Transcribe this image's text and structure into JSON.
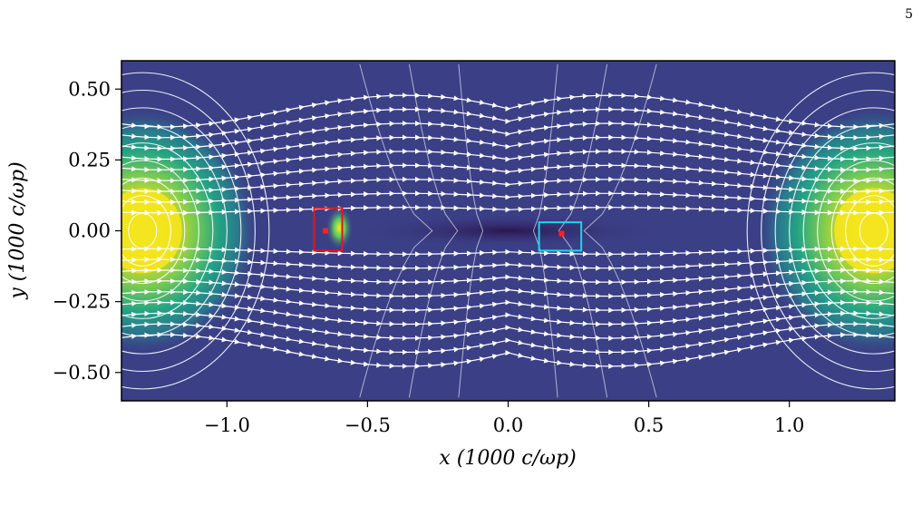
{
  "page_number": "5",
  "chart_data": {
    "type": "heatmap",
    "title": "",
    "xlabel": "x (1000 c/ωp)",
    "ylabel": "y (1000 c/ωp)",
    "xlim": [
      -1.375,
      1.375
    ],
    "ylim": [
      -0.6,
      0.6
    ],
    "x_ticks": [
      {
        "value": -1.0,
        "label": "−1.0"
      },
      {
        "value": -0.5,
        "label": "−0.5"
      },
      {
        "value": 0.0,
        "label": "0.0"
      },
      {
        "value": 0.5,
        "label": "0.5"
      },
      {
        "value": 1.0,
        "label": "1.0"
      }
    ],
    "y_ticks": [
      {
        "value": 0.5,
        "label": "0.50"
      },
      {
        "value": 0.25,
        "label": "0.25"
      },
      {
        "value": 0.0,
        "label": "0.00"
      },
      {
        "value": -0.25,
        "label": "−0.25"
      },
      {
        "value": -0.5,
        "label": "−0.50"
      }
    ],
    "colormap": "viridis",
    "background_color": "#3b3f86",
    "streamline_color": "#ffffff",
    "magnetic_islands": [
      {
        "x": -1.3,
        "y": 0.0
      },
      {
        "x": 1.3,
        "y": 0.0
      }
    ],
    "x_point": {
      "x": 0.0,
      "y": 0.0
    },
    "markers": [
      {
        "name": "red box",
        "color": "#e8141c",
        "x": [
          -0.69,
          -0.59
        ],
        "y": [
          -0.07,
          0.08
        ],
        "point": {
          "x": -0.65,
          "y": 0.0
        }
      },
      {
        "name": "cyan box",
        "color": "#1ad6e8",
        "x": [
          0.11,
          0.26
        ],
        "y": [
          -0.07,
          0.03
        ],
        "point": {
          "x": 0.19,
          "y": -0.01
        }
      }
    ]
  }
}
